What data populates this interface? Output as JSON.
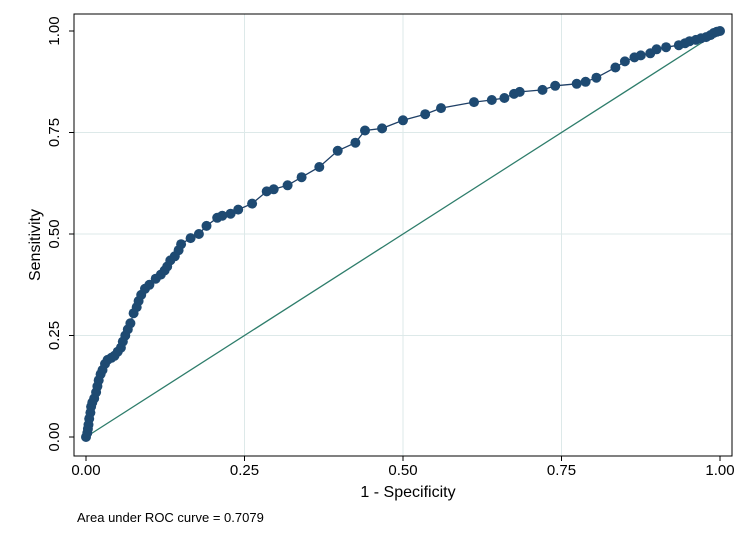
{
  "chart_data": {
    "type": "scatter",
    "title": "",
    "xlabel": "1 - Specificity",
    "ylabel": "Sensitivity",
    "xlim": [
      0,
      1
    ],
    "ylim": [
      0,
      1
    ],
    "xticks": [
      "0.00",
      "0.25",
      "0.50",
      "0.75",
      "1.00"
    ],
    "yticks": [
      "0.00",
      "0.25",
      "0.50",
      "0.75",
      "1.00"
    ],
    "grid": true,
    "note": "Area under ROC curve = 0.7079",
    "colors": {
      "curve": "#1e3f66",
      "marker": "#1e4a72",
      "reference": "#2e7d6b",
      "grid": "#dde9e9"
    },
    "series": [
      {
        "name": "ROC curve",
        "points": [
          [
            0.0,
            0.0
          ],
          [
            0.002,
            0.01
          ],
          [
            0.003,
            0.02
          ],
          [
            0.004,
            0.03
          ],
          [
            0.005,
            0.045
          ],
          [
            0.007,
            0.06
          ],
          [
            0.008,
            0.075
          ],
          [
            0.01,
            0.085
          ],
          [
            0.013,
            0.095
          ],
          [
            0.016,
            0.11
          ],
          [
            0.018,
            0.125
          ],
          [
            0.02,
            0.14
          ],
          [
            0.023,
            0.155
          ],
          [
            0.026,
            0.165
          ],
          [
            0.03,
            0.18
          ],
          [
            0.034,
            0.19
          ],
          [
            0.04,
            0.195
          ],
          [
            0.045,
            0.2
          ],
          [
            0.05,
            0.21
          ],
          [
            0.055,
            0.22
          ],
          [
            0.058,
            0.235
          ],
          [
            0.062,
            0.25
          ],
          [
            0.066,
            0.265
          ],
          [
            0.07,
            0.28
          ],
          [
            0.075,
            0.305
          ],
          [
            0.08,
            0.32
          ],
          [
            0.083,
            0.335
          ],
          [
            0.087,
            0.35
          ],
          [
            0.093,
            0.365
          ],
          [
            0.1,
            0.375
          ],
          [
            0.11,
            0.39
          ],
          [
            0.118,
            0.4
          ],
          [
            0.124,
            0.41
          ],
          [
            0.128,
            0.42
          ],
          [
            0.133,
            0.435
          ],
          [
            0.14,
            0.445
          ],
          [
            0.146,
            0.46
          ],
          [
            0.15,
            0.475
          ],
          [
            0.165,
            0.49
          ],
          [
            0.178,
            0.5
          ],
          [
            0.19,
            0.52
          ],
          [
            0.207,
            0.54
          ],
          [
            0.215,
            0.545
          ],
          [
            0.228,
            0.55
          ],
          [
            0.24,
            0.56
          ],
          [
            0.262,
            0.575
          ],
          [
            0.285,
            0.605
          ],
          [
            0.296,
            0.61
          ],
          [
            0.318,
            0.62
          ],
          [
            0.34,
            0.64
          ],
          [
            0.368,
            0.665
          ],
          [
            0.397,
            0.705
          ],
          [
            0.425,
            0.725
          ],
          [
            0.44,
            0.755
          ],
          [
            0.467,
            0.76
          ],
          [
            0.5,
            0.78
          ],
          [
            0.535,
            0.795
          ],
          [
            0.56,
            0.81
          ],
          [
            0.612,
            0.825
          ],
          [
            0.64,
            0.83
          ],
          [
            0.66,
            0.835
          ],
          [
            0.675,
            0.845
          ],
          [
            0.684,
            0.85
          ],
          [
            0.72,
            0.855
          ],
          [
            0.74,
            0.865
          ],
          [
            0.774,
            0.87
          ],
          [
            0.788,
            0.875
          ],
          [
            0.805,
            0.885
          ],
          [
            0.835,
            0.91
          ],
          [
            0.85,
            0.925
          ],
          [
            0.865,
            0.935
          ],
          [
            0.875,
            0.94
          ],
          [
            0.89,
            0.945
          ],
          [
            0.9,
            0.955
          ],
          [
            0.915,
            0.96
          ],
          [
            0.935,
            0.965
          ],
          [
            0.945,
            0.97
          ],
          [
            0.952,
            0.975
          ],
          [
            0.962,
            0.978
          ],
          [
            0.97,
            0.982
          ],
          [
            0.978,
            0.985
          ],
          [
            0.985,
            0.99
          ],
          [
            0.99,
            0.995
          ],
          [
            0.995,
            0.998
          ],
          [
            1.0,
            1.0
          ]
        ]
      },
      {
        "name": "Reference line",
        "points": [
          [
            0,
            0
          ],
          [
            1,
            1
          ]
        ]
      }
    ]
  }
}
